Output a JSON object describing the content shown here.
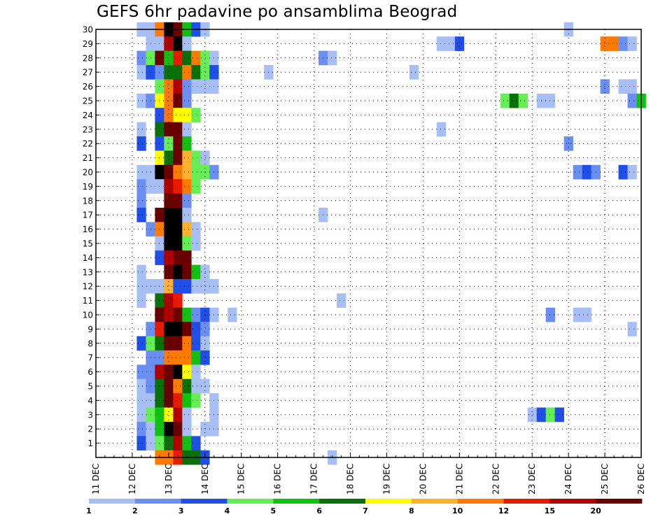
{
  "chart_data": {
    "type": "heatmap",
    "title": "GEFS 6hr padavine po ansamblima Beograd",
    "y_ticks": [
      1,
      2,
      3,
      4,
      5,
      6,
      7,
      8,
      9,
      10,
      11,
      12,
      13,
      14,
      15,
      16,
      17,
      18,
      19,
      20,
      21,
      22,
      23,
      24,
      25,
      26,
      27,
      28,
      29,
      30
    ],
    "x_ticks": [
      "11 DEC",
      "12 DEC",
      "13 DEC",
      "14 DEC",
      "15 DEC",
      "16 DEC",
      "17 DEC",
      "18 DEC",
      "19 DEC",
      "20 DEC",
      "21 DEC",
      "22 DEC",
      "23 DEC",
      "24 DEC",
      "25 DEC",
      "26 DEC"
    ],
    "x_range_days": [
      11,
      26
    ],
    "steps_per_day": 4,
    "y_range": [
      0,
      30
    ],
    "grid": true,
    "legend_placement": "bottom",
    "colorbar": {
      "labels": [
        "1",
        "2",
        "3",
        "4",
        "5",
        "6",
        "7",
        "8",
        "10",
        "12",
        "15",
        "20"
      ],
      "colors": [
        "#a8bff5",
        "#6b8ff0",
        "#1f4fe6",
        "#66ee55",
        "#12c012",
        "#0a700a",
        "#ffff00",
        "#ffb030",
        "#ff7a00",
        "#e81a00",
        "#b20000",
        "#6a0000"
      ]
    },
    "cells": [
      [
        30,
        12.25,
        1
      ],
      [
        30,
        12.5,
        1
      ],
      [
        30,
        12.75,
        9
      ],
      [
        30,
        13.0,
        14
      ],
      [
        30,
        13.25,
        12
      ],
      [
        30,
        13.5,
        5
      ],
      [
        30,
        13.75,
        3
      ],
      [
        30,
        14.0,
        1
      ],
      [
        30,
        24.0,
        1
      ],
      [
        29,
        12.5,
        1
      ],
      [
        29,
        12.75,
        1
      ],
      [
        29,
        13.0,
        11
      ],
      [
        29,
        13.25,
        13
      ],
      [
        29,
        13.5,
        1
      ],
      [
        29,
        20.5,
        1
      ],
      [
        29,
        20.75,
        1
      ],
      [
        29,
        21.0,
        3
      ],
      [
        29,
        25.0,
        9
      ],
      [
        29,
        25.25,
        9
      ],
      [
        29,
        25.5,
        2
      ],
      [
        29,
        25.75,
        1
      ],
      [
        28,
        12.25,
        2
      ],
      [
        28,
        12.5,
        4
      ],
      [
        28,
        12.75,
        12
      ],
      [
        28,
        13.0,
        5
      ],
      [
        28,
        13.25,
        10
      ],
      [
        28,
        13.5,
        6
      ],
      [
        28,
        13.75,
        9
      ],
      [
        28,
        14.0,
        4
      ],
      [
        28,
        14.25,
        1
      ],
      [
        28,
        17.25,
        2
      ],
      [
        28,
        17.5,
        1
      ],
      [
        27,
        12.25,
        1
      ],
      [
        27,
        12.5,
        3
      ],
      [
        27,
        12.75,
        2
      ],
      [
        27,
        13.0,
        6
      ],
      [
        27,
        13.25,
        6
      ],
      [
        27,
        13.5,
        9
      ],
      [
        27,
        13.75,
        6
      ],
      [
        27,
        14.0,
        4
      ],
      [
        27,
        14.25,
        3
      ],
      [
        27,
        15.75,
        1
      ],
      [
        27,
        19.75,
        1
      ],
      [
        26,
        12.75,
        4
      ],
      [
        26,
        13.0,
        9
      ],
      [
        26,
        13.25,
        11
      ],
      [
        26,
        13.5,
        2
      ],
      [
        26,
        13.75,
        1
      ],
      [
        26,
        14.0,
        1
      ],
      [
        26,
        14.25,
        1
      ],
      [
        26,
        25.0,
        2
      ],
      [
        26,
        25.5,
        1
      ],
      [
        26,
        25.75,
        1
      ],
      [
        25,
        12.25,
        1
      ],
      [
        25,
        12.5,
        2
      ],
      [
        25,
        12.75,
        7
      ],
      [
        25,
        13.0,
        9
      ],
      [
        25,
        13.25,
        12
      ],
      [
        25,
        13.5,
        2
      ],
      [
        25,
        22.25,
        4
      ],
      [
        25,
        22.5,
        6
      ],
      [
        25,
        22.75,
        4
      ],
      [
        25,
        23.25,
        1
      ],
      [
        25,
        23.5,
        1
      ],
      [
        25,
        25.75,
        2
      ],
      [
        25,
        26.0,
        5
      ],
      [
        24,
        12.75,
        3
      ],
      [
        24,
        13.0,
        9
      ],
      [
        24,
        13.25,
        7
      ],
      [
        24,
        13.5,
        7
      ],
      [
        24,
        13.75,
        4
      ],
      [
        23,
        12.25,
        1
      ],
      [
        23,
        12.75,
        6
      ],
      [
        23,
        13.0,
        12
      ],
      [
        23,
        13.25,
        12
      ],
      [
        23,
        13.5,
        1
      ],
      [
        23,
        20.5,
        1
      ],
      [
        22,
        12.25,
        3
      ],
      [
        22,
        12.75,
        3
      ],
      [
        22,
        13.0,
        4
      ],
      [
        22,
        13.25,
        12
      ],
      [
        22,
        13.5,
        5
      ],
      [
        22,
        24.0,
        2
      ],
      [
        21,
        12.75,
        7
      ],
      [
        21,
        13.0,
        6
      ],
      [
        21,
        13.25,
        12
      ],
      [
        21,
        13.5,
        8
      ],
      [
        21,
        13.75,
        4
      ],
      [
        21,
        14.0,
        1
      ],
      [
        20,
        12.25,
        1
      ],
      [
        20,
        12.5,
        1
      ],
      [
        20,
        12.75,
        13
      ],
      [
        20,
        13.0,
        12
      ],
      [
        20,
        13.25,
        9
      ],
      [
        20,
        13.5,
        8
      ],
      [
        20,
        13.75,
        4
      ],
      [
        20,
        14.0,
        4
      ],
      [
        20,
        14.25,
        2
      ],
      [
        20,
        24.25,
        2
      ],
      [
        20,
        24.5,
        3
      ],
      [
        20,
        24.75,
        2
      ],
      [
        20,
        25.5,
        3
      ],
      [
        20,
        25.75,
        1
      ],
      [
        19,
        12.25,
        2
      ],
      [
        19,
        12.5,
        1
      ],
      [
        19,
        12.75,
        1
      ],
      [
        19,
        13.0,
        11
      ],
      [
        19,
        13.25,
        10
      ],
      [
        19,
        13.5,
        9
      ],
      [
        19,
        13.75,
        4
      ],
      [
        18,
        12.25,
        2
      ],
      [
        18,
        13.0,
        12
      ],
      [
        18,
        13.25,
        12
      ],
      [
        18,
        13.5,
        2
      ],
      [
        17,
        12.25,
        3
      ],
      [
        17,
        12.75,
        12
      ],
      [
        17,
        13.0,
        13
      ],
      [
        17,
        13.25,
        13
      ],
      [
        17,
        13.5,
        1
      ],
      [
        17,
        17.25,
        1
      ],
      [
        16,
        12.5,
        2
      ],
      [
        16,
        12.75,
        9
      ],
      [
        16,
        13.0,
        13
      ],
      [
        16,
        13.25,
        13
      ],
      [
        16,
        13.5,
        8
      ],
      [
        16,
        13.75,
        1
      ],
      [
        15,
        12.75,
        1
      ],
      [
        15,
        13.0,
        13
      ],
      [
        15,
        13.25,
        13
      ],
      [
        15,
        13.5,
        4
      ],
      [
        15,
        13.75,
        1
      ],
      [
        14,
        12.75,
        3
      ],
      [
        14,
        13.0,
        11
      ],
      [
        14,
        13.25,
        12
      ],
      [
        14,
        13.5,
        12
      ],
      [
        13,
        12.25,
        1
      ],
      [
        13,
        13.0,
        12
      ],
      [
        13,
        13.25,
        13
      ],
      [
        13,
        13.5,
        12
      ],
      [
        13,
        13.75,
        5
      ],
      [
        13,
        14.0,
        1
      ],
      [
        12,
        12.25,
        1
      ],
      [
        12,
        12.5,
        1
      ],
      [
        12,
        12.75,
        1
      ],
      [
        12,
        13.0,
        8
      ],
      [
        12,
        13.25,
        3
      ],
      [
        12,
        13.5,
        3
      ],
      [
        12,
        13.75,
        1
      ],
      [
        12,
        14.0,
        1
      ],
      [
        12,
        14.25,
        1
      ],
      [
        11,
        12.25,
        1
      ],
      [
        11,
        12.75,
        6
      ],
      [
        11,
        13.0,
        11
      ],
      [
        11,
        13.25,
        10
      ],
      [
        11,
        17.75,
        1
      ],
      [
        10,
        12.75,
        12
      ],
      [
        10,
        13.0,
        11
      ],
      [
        10,
        13.25,
        12
      ],
      [
        10,
        13.5,
        5
      ],
      [
        10,
        13.75,
        2
      ],
      [
        10,
        14.0,
        3
      ],
      [
        10,
        14.25,
        1
      ],
      [
        10,
        14.75,
        1
      ],
      [
        10,
        23.5,
        2
      ],
      [
        10,
        24.25,
        1
      ],
      [
        10,
        24.5,
        1
      ],
      [
        9,
        12.5,
        2
      ],
      [
        9,
        12.75,
        10
      ],
      [
        9,
        13.0,
        13
      ],
      [
        9,
        13.25,
        13
      ],
      [
        9,
        13.5,
        12
      ],
      [
        9,
        13.75,
        3
      ],
      [
        9,
        14.0,
        2
      ],
      [
        9,
        25.75,
        1
      ],
      [
        8,
        12.25,
        3
      ],
      [
        8,
        12.5,
        4
      ],
      [
        8,
        12.75,
        6
      ],
      [
        8,
        13.0,
        12
      ],
      [
        8,
        13.25,
        12
      ],
      [
        8,
        13.5,
        9
      ],
      [
        8,
        13.75,
        3
      ],
      [
        8,
        14.0,
        1
      ],
      [
        7,
        12.5,
        2
      ],
      [
        7,
        12.75,
        2
      ],
      [
        7,
        13.0,
        9
      ],
      [
        7,
        13.25,
        9
      ],
      [
        7,
        13.5,
        9
      ],
      [
        7,
        13.75,
        5
      ],
      [
        7,
        14.0,
        3
      ],
      [
        6,
        12.25,
        2
      ],
      [
        6,
        12.5,
        2
      ],
      [
        6,
        12.75,
        11
      ],
      [
        6,
        13.0,
        12
      ],
      [
        6,
        13.25,
        13
      ],
      [
        6,
        13.5,
        7
      ],
      [
        6,
        13.75,
        1
      ],
      [
        5,
        12.25,
        1
      ],
      [
        5,
        12.5,
        2
      ],
      [
        5,
        12.75,
        6
      ],
      [
        5,
        13.0,
        12
      ],
      [
        5,
        13.25,
        9
      ],
      [
        5,
        13.5,
        6
      ],
      [
        5,
        13.75,
        1
      ],
      [
        5,
        14.0,
        1
      ],
      [
        4,
        12.25,
        1
      ],
      [
        4,
        12.5,
        1
      ],
      [
        4,
        12.75,
        6
      ],
      [
        4,
        13.0,
        12
      ],
      [
        4,
        13.25,
        10
      ],
      [
        4,
        13.5,
        5
      ],
      [
        4,
        13.75,
        4
      ],
      [
        4,
        14.25,
        1
      ],
      [
        3,
        12.25,
        1
      ],
      [
        3,
        12.5,
        4
      ],
      [
        3,
        12.75,
        5
      ],
      [
        3,
        13.0,
        7
      ],
      [
        3,
        13.25,
        11
      ],
      [
        3,
        13.5,
        1
      ],
      [
        3,
        14.25,
        1
      ],
      [
        3,
        23.0,
        1
      ],
      [
        3,
        23.25,
        3
      ],
      [
        3,
        23.5,
        4
      ],
      [
        3,
        23.75,
        3
      ],
      [
        2,
        12.25,
        2
      ],
      [
        2,
        12.5,
        1
      ],
      [
        2,
        12.75,
        5
      ],
      [
        2,
        13.0,
        13
      ],
      [
        2,
        13.25,
        12
      ],
      [
        2,
        13.5,
        1
      ],
      [
        2,
        14.0,
        1
      ],
      [
        2,
        14.25,
        1
      ],
      [
        1,
        12.25,
        3
      ],
      [
        1,
        12.5,
        1
      ],
      [
        1,
        12.75,
        4
      ],
      [
        1,
        13.0,
        6
      ],
      [
        1,
        13.25,
        11
      ],
      [
        1,
        13.5,
        5
      ],
      [
        1,
        13.75,
        3
      ],
      [
        0,
        12.75,
        9
      ],
      [
        0,
        13.0,
        9
      ],
      [
        0,
        13.25,
        10
      ],
      [
        0,
        13.5,
        6
      ],
      [
        0,
        13.75,
        6
      ],
      [
        0,
        14.0,
        3
      ],
      [
        0,
        17.5,
        1
      ]
    ]
  }
}
